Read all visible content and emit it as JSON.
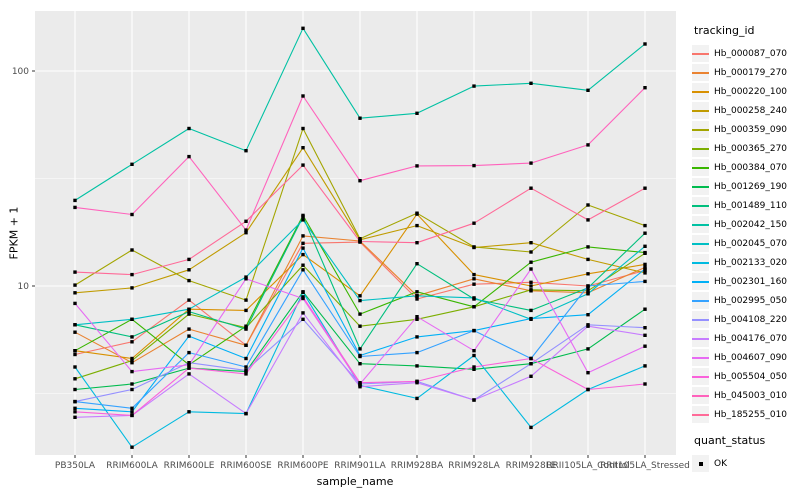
{
  "chart_data": {
    "type": "line",
    "title": "",
    "xlabel": "sample_name",
    "ylabel": "FPKM + 1",
    "y_scale": "log10",
    "y_ticks": [
      10,
      100
    ],
    "y_minor_ticks": [
      3.162,
      31.623
    ],
    "ylim": [
      1.6,
      190
    ],
    "grid": true,
    "legend_position": "right",
    "legend_title": "tracking_id",
    "quant_legend_title": "quant_status",
    "quant_status_label": "OK",
    "panel_bg": "#EBEBEB",
    "grid_color": "#FFFFFF",
    "tick_label_color": "#4D4D4D",
    "point_color": "#000000",
    "categories": [
      "PB350LA",
      "RRIM600LA",
      "RRIM600LE",
      "RRIM600SE",
      "RRIM600PE",
      "RRIM901LA",
      "RRIM928BA",
      "RRIM928LA",
      "RRIM928LE",
      "RRII105LA_Control",
      "RRII105LA_Stressed"
    ],
    "series": [
      {
        "name": "Hb_000087_070",
        "color": "#F8766D",
        "values": [
          4.8,
          5.5,
          8.6,
          5.3,
          15.8,
          16.0,
          8.7,
          10.2,
          10.4,
          10.0,
          11.8
        ]
      },
      {
        "name": "Hb_000179_270",
        "color": "#EA8331",
        "values": [
          6.1,
          4.4,
          6.3,
          5.3,
          17.1,
          16.2,
          9.0,
          10.8,
          9.5,
          9.3,
          12.2
        ]
      },
      {
        "name": "Hb_000220_100",
        "color": "#D89000",
        "values": [
          5.0,
          4.6,
          7.8,
          7.7,
          14.0,
          9.0,
          21.6,
          11.3,
          10.0,
          11.4,
          12.6
        ]
      },
      {
        "name": "Hb_000258_240",
        "color": "#C09B00",
        "values": [
          9.3,
          9.8,
          11.9,
          17.7,
          44.0,
          16.4,
          19.1,
          15.1,
          15.9,
          13.3,
          11.5
        ]
      },
      {
        "name": "Hb_000359_090",
        "color": "#A3A500",
        "values": [
          10.1,
          14.7,
          10.6,
          8.6,
          54.0,
          16.6,
          21.8,
          15.2,
          14.4,
          23.8,
          19.1
        ]
      },
      {
        "name": "Hb_000365_270",
        "color": "#7CAE00",
        "values": [
          3.7,
          4.5,
          7.4,
          6.4,
          12.5,
          6.5,
          7.0,
          8.0,
          9.6,
          9.5,
          14.2
        ]
      },
      {
        "name": "Hb_000384_070",
        "color": "#39B600",
        "values": [
          5.0,
          7.0,
          4.3,
          6.5,
          21.3,
          7.4,
          9.4,
          8.0,
          12.9,
          15.2,
          14.3
        ]
      },
      {
        "name": "Hb_001269_190",
        "color": "#00BB4E",
        "values": [
          3.3,
          3.5,
          4.15,
          4.0,
          9.4,
          4.35,
          4.25,
          4.1,
          4.35,
          5.1,
          7.8
        ]
      },
      {
        "name": "Hb_001489_110",
        "color": "#00BF7D",
        "values": [
          6.6,
          5.8,
          7.6,
          6.3,
          21.0,
          5.1,
          12.7,
          8.7,
          7.7,
          9.8,
          17.6
        ]
      },
      {
        "name": "Hb_002042_150",
        "color": "#00C1A3",
        "values": [
          25.0,
          36.8,
          54.0,
          42.6,
          158.0,
          60.3,
          63.6,
          85.1,
          87.7,
          81.3,
          133.6
        ]
      },
      {
        "name": "Hb_002045_070",
        "color": "#00BFC4",
        "values": [
          6.6,
          7.0,
          7.8,
          11.0,
          20.3,
          8.55,
          9.0,
          8.8,
          7.0,
          9.2,
          15.3
        ]
      },
      {
        "name": "Hb_002133_020",
        "color": "#00BAE0",
        "values": [
          4.2,
          1.78,
          2.6,
          2.55,
          9.35,
          3.45,
          3.0,
          4.75,
          2.2,
          3.3,
          4.25
        ]
      },
      {
        "name": "Hb_002301_160",
        "color": "#00B0F6",
        "values": [
          2.7,
          2.6,
          5.85,
          4.6,
          15.0,
          4.75,
          5.8,
          6.2,
          7.05,
          7.35,
          12.0
        ]
      },
      {
        "name": "Hb_002995_050",
        "color": "#35A2FF",
        "values": [
          2.9,
          2.7,
          4.9,
          4.2,
          11.9,
          4.7,
          4.9,
          6.2,
          4.6,
          10.0,
          10.5
        ]
      },
      {
        "name": "Hb_004108_220",
        "color": "#9590FF",
        "values": [
          2.9,
          3.3,
          4.4,
          4.05,
          7.0,
          3.5,
          3.6,
          2.95,
          4.35,
          6.6,
          6.4
        ]
      },
      {
        "name": "Hb_004176_070",
        "color": "#C77CFF",
        "values": [
          2.45,
          2.5,
          3.9,
          2.55,
          7.5,
          3.4,
          3.55,
          2.95,
          3.8,
          6.5,
          5.9
        ]
      },
      {
        "name": "Hb_004607_090",
        "color": "#E76BF3",
        "values": [
          8.3,
          4.0,
          4.3,
          10.8,
          8.75,
          3.5,
          7.2,
          5.0,
          12.0,
          3.95,
          5.25
        ]
      },
      {
        "name": "Hb_005504_050",
        "color": "#FA62DB",
        "values": [
          2.6,
          2.5,
          4.15,
          3.9,
          8.9,
          3.55,
          3.6,
          4.2,
          4.6,
          3.3,
          3.5
        ]
      },
      {
        "name": "Hb_045003_010",
        "color": "#FF62BC",
        "values": [
          23.2,
          21.5,
          40.0,
          18.2,
          76.5,
          30.9,
          36.2,
          36.3,
          37.3,
          45.3,
          83.6
        ]
      },
      {
        "name": "Hb_185255_010",
        "color": "#FF6A98",
        "values": [
          11.6,
          11.3,
          13.3,
          20.0,
          36.5,
          16.1,
          15.9,
          19.6,
          28.5,
          20.3,
          28.5
        ]
      }
    ]
  }
}
